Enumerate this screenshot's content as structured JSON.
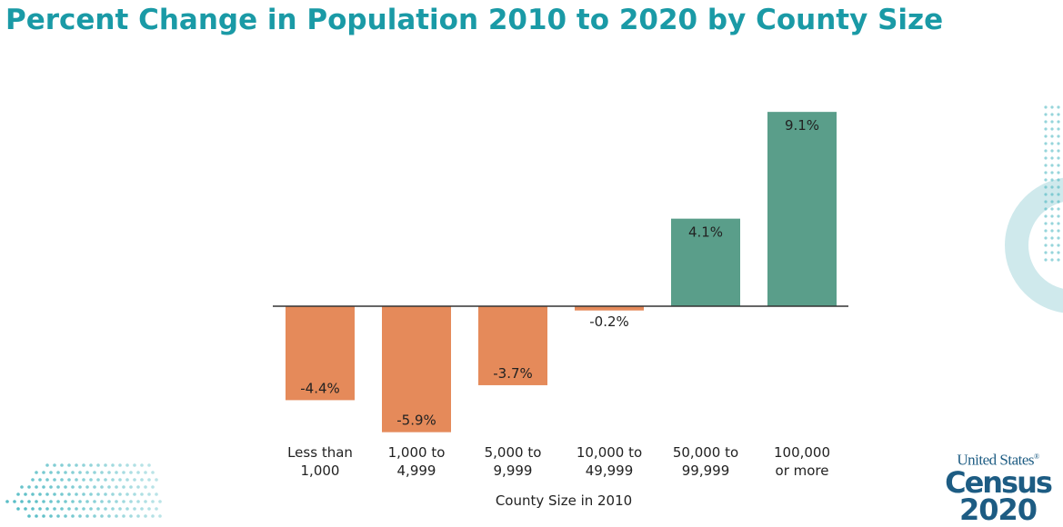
{
  "title": "Percent Change in Population 2010 to 2020 by County Size",
  "logo": {
    "line1": "United States",
    "line2": "Census",
    "line3": "2020",
    "reg": "®"
  },
  "chart_data": {
    "type": "bar",
    "title": "Percent Change in Population 2010 to 2020 by County Size",
    "xlabel": "County Size in 2010",
    "ylabel": "",
    "categories": [
      [
        "Less than",
        "1,000"
      ],
      [
        "1,000 to",
        "4,999"
      ],
      [
        "5,000 to",
        "9,999"
      ],
      [
        "10,000 to",
        "49,999"
      ],
      [
        "50,000 to",
        "99,999"
      ],
      [
        "100,000",
        "or more"
      ]
    ],
    "values": [
      -4.4,
      -5.9,
      -3.7,
      -0.2,
      4.1,
      9.1
    ],
    "labels": [
      "-4.4%",
      "-5.9%",
      "-3.7%",
      "-0.2%",
      "4.1%",
      "9.1%"
    ],
    "ylim": [
      -6.5,
      10
    ],
    "grid": false,
    "legend": "none",
    "colors": {
      "negative": "#e58a5a",
      "positive": "#5a9e8a",
      "axis": "#333333",
      "text": "#222222"
    }
  }
}
